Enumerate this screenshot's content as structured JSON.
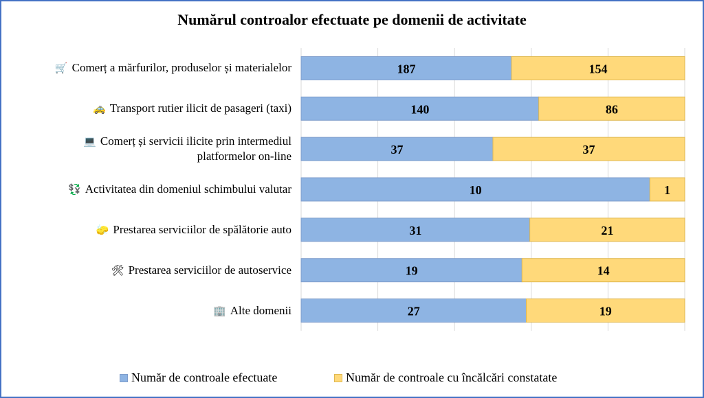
{
  "chart_data": {
    "type": "bar",
    "orientation": "horizontal",
    "stacked": "percent",
    "title": "Numărul controalor efectuate pe domenii de activitate",
    "categories": [
      {
        "label": "Comerț a mărfurilor, produselor și materialelor",
        "icon": "shopping-cart-icon",
        "glyph": "🛒"
      },
      {
        "label": "Transport rutier ilicit de pasageri (taxi)",
        "icon": "taxi-icon",
        "glyph": "🚕"
      },
      {
        "label": "Comerț și servicii ilicite prin intermediul platformelor on-line",
        "lines": [
          "Comerț și servicii ilicite prin intermediul",
          "platformelor on-line"
        ],
        "icon": "laptop-icon",
        "glyph": "💻"
      },
      {
        "label": "Activitatea din domeniul schimbului valutar",
        "icon": "currency-exchange-icon",
        "glyph": "💱"
      },
      {
        "label": "Prestarea serviciilor de spălătorie auto",
        "icon": "sponge-icon",
        "glyph": "🧽"
      },
      {
        "label": "Prestarea serviciilor de autoservice",
        "icon": "tools-icon",
        "glyph": "🛠"
      },
      {
        "label": "Alte domenii",
        "icon": "office-building-icon",
        "glyph": "🏢"
      }
    ],
    "series": [
      {
        "name": "Număr de controale efectuate",
        "color": "#8EB4E3",
        "values": [
          187,
          140,
          37,
          10,
          31,
          19,
          27
        ]
      },
      {
        "name": "Număr de controale cu încălcări constatate",
        "color": "#FFD97A",
        "values": [
          154,
          86,
          37,
          1,
          21,
          14,
          19
        ]
      }
    ],
    "xlim": [
      0,
      100
    ],
    "grid": true,
    "legend_position": "bottom"
  }
}
